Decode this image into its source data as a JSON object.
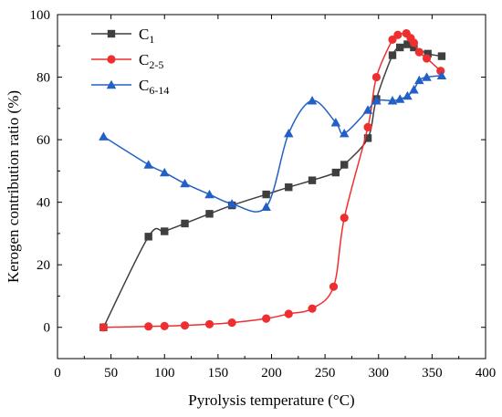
{
  "chart_data": {
    "type": "line",
    "title": "",
    "xlabel": "Pyrolysis temperature (°C)",
    "ylabel": "Kerogen contribution ratio (%)",
    "xlim": [
      0,
      400
    ],
    "ylim": [
      -10,
      100
    ],
    "xticks": [
      0,
      50,
      100,
      150,
      200,
      250,
      300,
      350,
      400
    ],
    "yticks": [
      0,
      20,
      40,
      60,
      80,
      100
    ],
    "grid": false,
    "legend_position": "top-left",
    "series": [
      {
        "name": "C1",
        "name_main": "C",
        "name_sub": "1",
        "color": "#3f3f3f",
        "marker": "square",
        "x": [
          43,
          85,
          100,
          119,
          142,
          163,
          195,
          216,
          238,
          260,
          268,
          290,
          298,
          313,
          320,
          327,
          333,
          346,
          359
        ],
        "y": [
          0,
          29,
          30.7,
          33.2,
          36.3,
          39,
          42.5,
          44.8,
          47,
          49.5,
          52,
          60.5,
          73,
          87,
          89.5,
          90.5,
          89.5,
          87.5,
          86.7
        ]
      },
      {
        "name": "C2-5",
        "name_main": "C",
        "name_sub": "2-5",
        "color": "#ef2f2f",
        "marker": "circle",
        "x": [
          43,
          85,
          100,
          119,
          142,
          163,
          195,
          216,
          238,
          258,
          268,
          290,
          298,
          313,
          318,
          326,
          330,
          333,
          338,
          345,
          358
        ],
        "y": [
          0,
          0.3,
          0.4,
          0.6,
          1.0,
          1.5,
          2.8,
          4.3,
          6.0,
          13,
          35,
          64,
          80,
          92,
          93.5,
          94,
          92.5,
          91,
          88,
          86,
          82
        ]
      },
      {
        "name": "C6-14",
        "name_main": "C",
        "name_sub": "6-14",
        "color": "#2260c8",
        "marker": "triangle",
        "x": [
          43,
          85,
          100,
          119,
          142,
          163,
          195,
          216,
          238,
          260,
          268,
          290,
          298,
          313,
          320,
          327,
          333,
          338,
          345,
          359
        ],
        "y": [
          61,
          52,
          49.5,
          46,
          42.5,
          39.5,
          38.5,
          62,
          72.5,
          65.5,
          62,
          69.5,
          72.5,
          72.5,
          73,
          74,
          76,
          79,
          80,
          80.5
        ]
      }
    ]
  }
}
